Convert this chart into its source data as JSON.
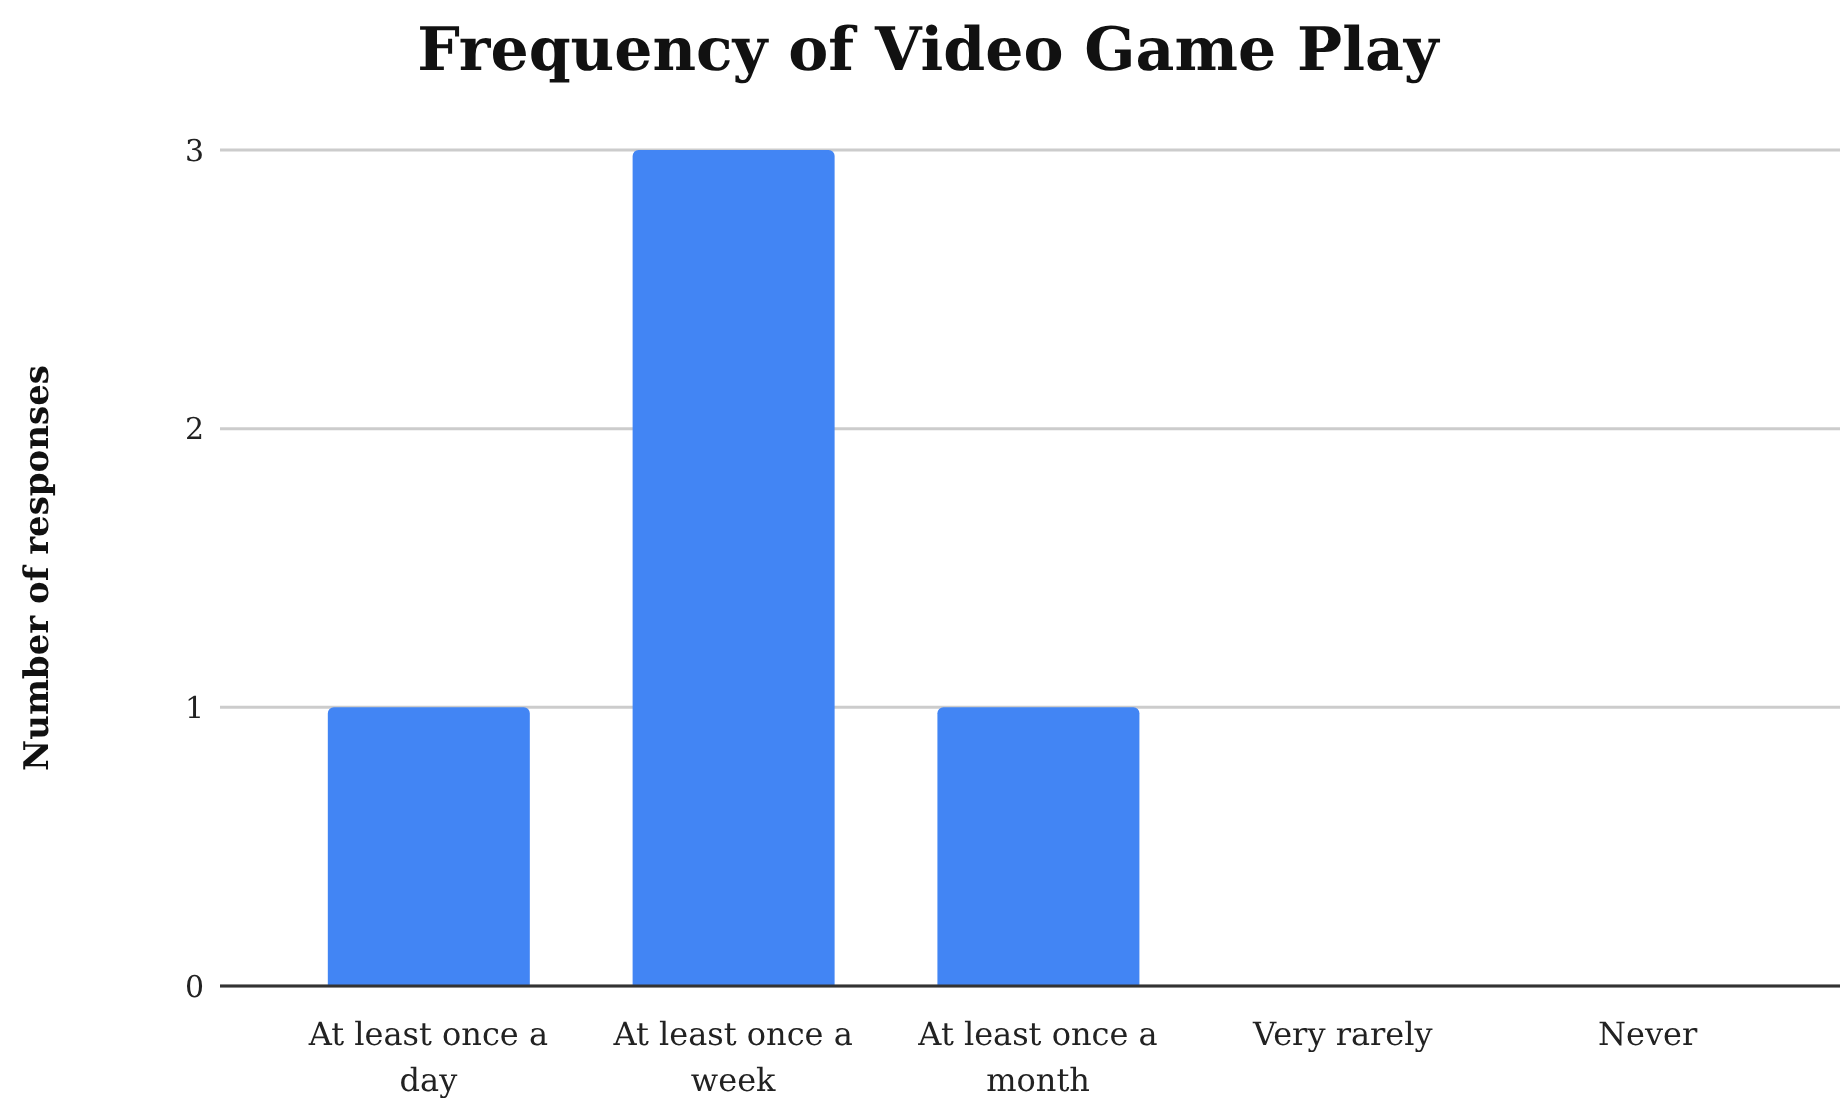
{
  "chart_data": {
    "type": "bar",
    "title": "Frequency of Video Game Play",
    "ylabel": "Number of responses",
    "categories": [
      "At least once a day",
      "At least once a week",
      "At least once a month",
      "Very rarely",
      "Never"
    ],
    "values": [
      1,
      3,
      1,
      0,
      0
    ],
    "color": "#4285f4",
    "ylim": [
      0,
      3
    ],
    "yticks": [
      0,
      1,
      2,
      3
    ],
    "grid": "y"
  }
}
